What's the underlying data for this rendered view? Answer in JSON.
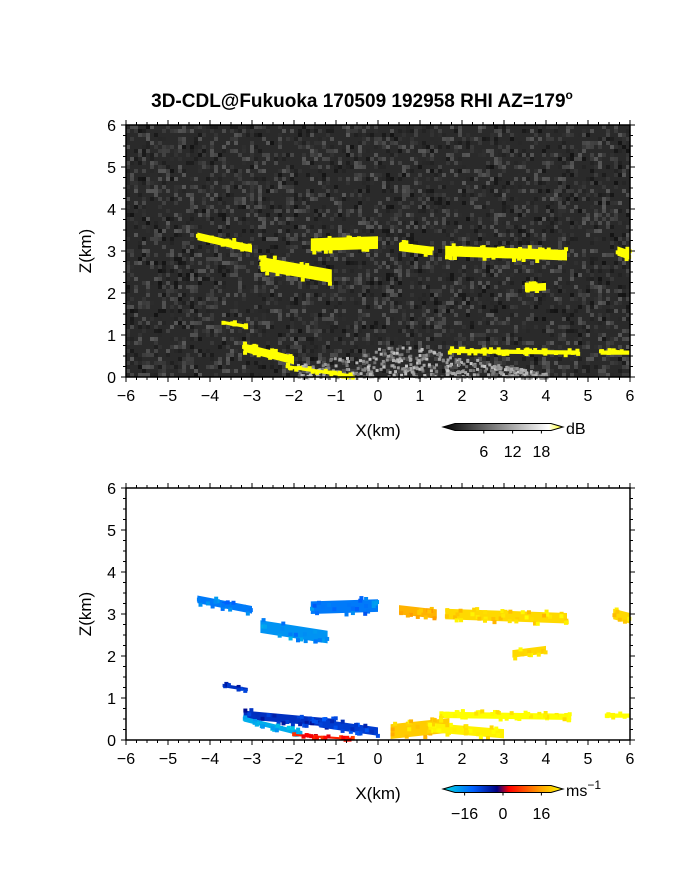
{
  "title": "3D-CDL@Fukuoka 170509 192958 RHI AZ=179",
  "title_suffix": "o",
  "chart_data": [
    {
      "type": "heatmap",
      "name": "reflectivity",
      "xlabel": "X(km)",
      "ylabel": "Z(km)",
      "xlim": [
        -6,
        6
      ],
      "ylim": [
        0,
        6
      ],
      "xticks": [
        "-6",
        "-5",
        "-4",
        "-3",
        "-2",
        "-1",
        "0",
        "1",
        "2",
        "3",
        "4",
        "5",
        "6"
      ],
      "yticks": [
        "0",
        "1",
        "2",
        "3",
        "4",
        "5",
        "6"
      ],
      "colorbar": {
        "unit": "dB",
        "ticks": [
          "6",
          "12",
          "18"
        ],
        "values": [
          6,
          12,
          18
        ],
        "range": [
          0,
          20
        ]
      },
      "colors": {
        "background": "#2a2a2a",
        "echo": "#ffff00"
      },
      "segments": [
        {
          "x0": -4.3,
          "x1": -3.0,
          "z0": 3.35,
          "z1": 3.05,
          "h": 0.18
        },
        {
          "x0": -2.8,
          "x1": -1.1,
          "z0": 2.7,
          "z1": 2.4,
          "h": 0.32
        },
        {
          "x0": -1.6,
          "x1": 0.0,
          "z0": 3.15,
          "z1": 3.2,
          "h": 0.3
        },
        {
          "x0": 0.5,
          "x1": 1.3,
          "z0": 3.1,
          "z1": 3.0,
          "h": 0.2
        },
        {
          "x0": 1.6,
          "x1": 4.5,
          "z0": 3.0,
          "z1": 2.9,
          "h": 0.25
        },
        {
          "x0": 3.5,
          "x1": 4.0,
          "z0": 2.12,
          "z1": 2.15,
          "h": 0.18
        },
        {
          "x0": 5.7,
          "x1": 6.0,
          "z0": 3.0,
          "z1": 2.9,
          "h": 0.22
        },
        {
          "x0": -3.7,
          "x1": -3.1,
          "z0": 1.3,
          "z1": 1.2,
          "h": 0.08
        },
        {
          "x0": -3.2,
          "x1": -2.0,
          "z0": 0.7,
          "z1": 0.4,
          "h": 0.2
        },
        {
          "x0": -2.2,
          "x1": -0.6,
          "z0": 0.25,
          "z1": 0.02,
          "h": 0.08
        },
        {
          "x0": 1.7,
          "x1": 4.8,
          "z0": 0.62,
          "z1": 0.58,
          "h": 0.1
        },
        {
          "x0": 5.3,
          "x1": 6.0,
          "z0": 0.58,
          "z1": 0.58,
          "h": 0.1
        }
      ]
    },
    {
      "type": "heatmap",
      "name": "doppler-velocity",
      "xlabel": "X(km)",
      "ylabel": "Z(km)",
      "xlim": [
        -6,
        6
      ],
      "ylim": [
        0,
        6
      ],
      "xticks": [
        "-6",
        "-5",
        "-4",
        "-3",
        "-2",
        "-1",
        "0",
        "1",
        "2",
        "3",
        "4",
        "5",
        "6"
      ],
      "yticks": [
        "0",
        "1",
        "2",
        "3",
        "4",
        "5",
        "6"
      ],
      "colorbar": {
        "unit": "ms",
        "unit_exp": "−1",
        "ticks": [
          "−16",
          "0",
          "16"
        ],
        "values": [
          -16,
          0,
          16
        ],
        "range": [
          -20,
          20
        ]
      },
      "segments": [
        {
          "x0": -4.3,
          "x1": -3.0,
          "z0": 3.35,
          "z1": 3.1,
          "h": 0.18,
          "v": -12
        },
        {
          "x0": -2.8,
          "x1": -1.2,
          "z0": 2.7,
          "z1": 2.45,
          "h": 0.3,
          "v": -14
        },
        {
          "x0": -1.6,
          "x1": 0.0,
          "z0": 3.15,
          "z1": 3.2,
          "h": 0.3,
          "v": -12
        },
        {
          "x0": 0.5,
          "x1": 1.4,
          "z0": 3.1,
          "z1": 3.0,
          "h": 0.22,
          "v": 14
        },
        {
          "x0": 1.6,
          "x1": 4.5,
          "z0": 3.0,
          "z1": 2.9,
          "h": 0.25,
          "v": 17
        },
        {
          "x0": 3.2,
          "x1": 4.0,
          "z0": 2.05,
          "z1": 2.15,
          "h": 0.18,
          "v": 17
        },
        {
          "x0": 5.6,
          "x1": 6.0,
          "z0": 3.0,
          "z1": 2.9,
          "h": 0.25,
          "v": 17
        },
        {
          "x0": -3.7,
          "x1": -3.1,
          "z0": 1.3,
          "z1": 1.2,
          "h": 0.08,
          "v": -6
        },
        {
          "x0": -3.2,
          "x1": -1.0,
          "z0": 0.6,
          "z1": 0.4,
          "h": 0.2,
          "v": -6
        },
        {
          "x0": -3.2,
          "x1": -1.8,
          "z0": 0.5,
          "z1": 0.15,
          "h": 0.12,
          "v": -16
        },
        {
          "x0": -1.4,
          "x1": 0.0,
          "z0": 0.4,
          "z1": 0.2,
          "h": 0.2,
          "v": -7
        },
        {
          "x0": -2.0,
          "x1": -0.6,
          "z0": 0.12,
          "z1": 0.02,
          "h": 0.05,
          "v": 4
        },
        {
          "x0": 0.3,
          "x1": 1.7,
          "z0": 0.2,
          "z1": 0.35,
          "h": 0.35,
          "v": 16
        },
        {
          "x0": 1.5,
          "x1": 4.6,
          "z0": 0.6,
          "z1": 0.55,
          "h": 0.15,
          "v": 20
        },
        {
          "x0": 5.4,
          "x1": 6.0,
          "z0": 0.58,
          "z1": 0.58,
          "h": 0.1,
          "v": 21
        },
        {
          "x0": 1.2,
          "x1": 3.0,
          "z0": 0.3,
          "z1": 0.15,
          "h": 0.22,
          "v": 19
        }
      ]
    }
  ]
}
